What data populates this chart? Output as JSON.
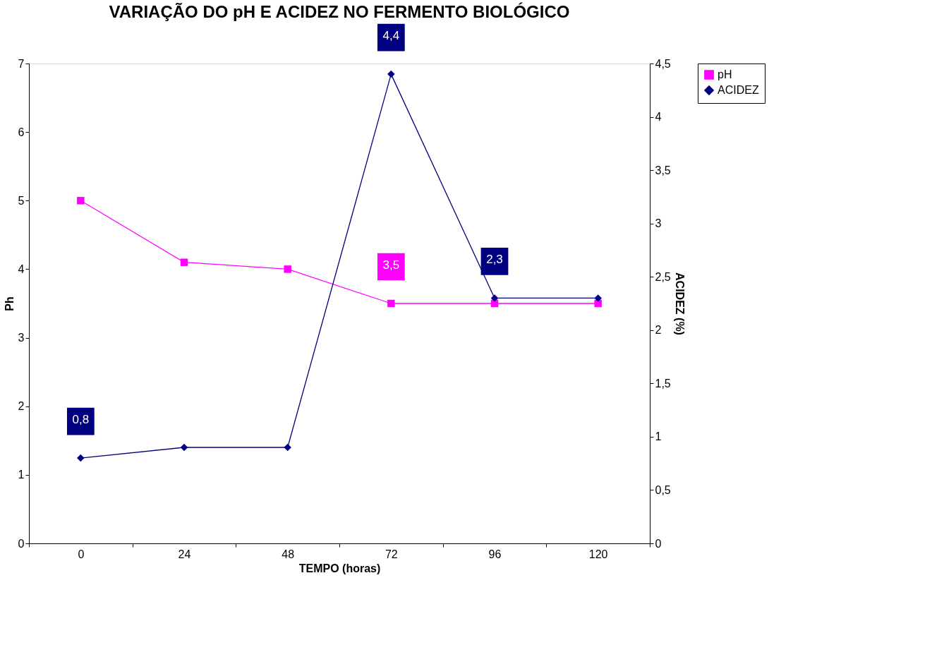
{
  "chart_data": {
    "type": "line",
    "title": "VARIAÇÃO DO pH E ACIDEZ NO FERMENTO BIOLÓGICO",
    "xlabel": "TEMPO (horas)",
    "ylabel": "Ph",
    "y2label": "ACIDEZ (%)",
    "categories": [
      "0",
      "24",
      "48",
      "72",
      "96",
      "120"
    ],
    "series": [
      {
        "name": "pH",
        "color": "#ff00ff",
        "marker": "square",
        "values": [
          5,
          4.1,
          4.0,
          3.5,
          3.5,
          3.5
        ],
        "value_labels": [
          null,
          null,
          null,
          "3,5",
          null,
          null
        ]
      },
      {
        "name": "ACIDEZ",
        "color": "#000080",
        "marker": "diamond",
        "axis": "y2",
        "values": [
          0.8,
          0.9,
          0.9,
          4.4,
          2.3,
          2.3
        ],
        "value_labels": [
          "0,8",
          null,
          null,
          "4,4",
          "2,3",
          null
        ]
      }
    ],
    "ylim": [
      0,
      7
    ],
    "yticks": [
      0,
      1,
      2,
      3,
      4,
      5,
      6,
      7
    ],
    "y2lim": [
      0,
      4.5
    ],
    "y2ticks": [
      0,
      {
        "value": 0.5,
        "label": "0,5"
      },
      1,
      {
        "value": 1.5,
        "label": "1,5"
      },
      2,
      {
        "value": 2.5,
        "label": "2,5"
      },
      3,
      {
        "value": 3.5,
        "label": "3,5"
      },
      4,
      {
        "value": 4.5,
        "label": "4,5"
      }
    ],
    "grid": false,
    "legend": "right"
  }
}
